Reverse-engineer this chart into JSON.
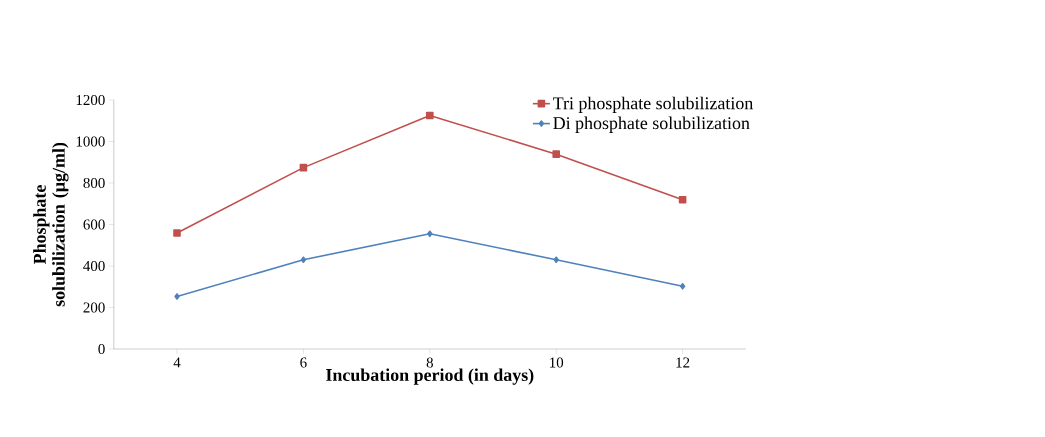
{
  "chart_data": {
    "type": "line",
    "xlabel": "Incubation period (in days)",
    "ylabel": "Phosphate solubilization (µg/ml)",
    "categories": [
      "4",
      "6",
      "8",
      "10",
      "12"
    ],
    "series": [
      {
        "name": "Tri phosphate solubilization",
        "color": "#c0504d",
        "marker": "square",
        "values": [
          559,
          874,
          1125,
          939,
          719
        ]
      },
      {
        "name": "Di phosphate solubilization",
        "color": "#4f81bd",
        "marker": "diamond",
        "values": [
          253,
          430,
          555,
          430,
          302
        ]
      }
    ],
    "ylim": [
      0,
      1200
    ],
    "yticks": [
      0,
      200,
      400,
      600,
      800,
      1000,
      1200
    ],
    "grid": false,
    "legend": "top right",
    "line_style": "solid"
  }
}
